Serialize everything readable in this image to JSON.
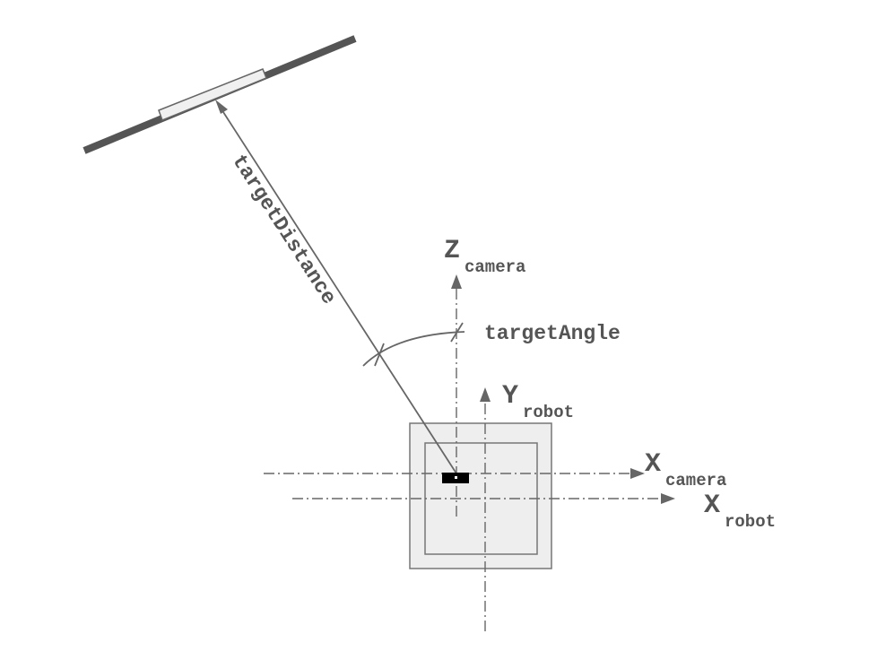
{
  "labels": {
    "z_camera": {
      "main": "Z",
      "sub": "camera"
    },
    "y_robot": {
      "main": "Y",
      "sub": "robot"
    },
    "x_camera": {
      "main": "X",
      "sub": "camera"
    },
    "x_robot": {
      "main": "X",
      "sub": "robot"
    },
    "target_angle": "targetAngle",
    "target_distance": "targetDistance"
  },
  "colors": {
    "line": "#666666",
    "wall": "#555555",
    "target_fill": "#f0f0f0",
    "robot_fill": "#eeeeee",
    "camera_fill": "#000000",
    "text": "#555555"
  }
}
